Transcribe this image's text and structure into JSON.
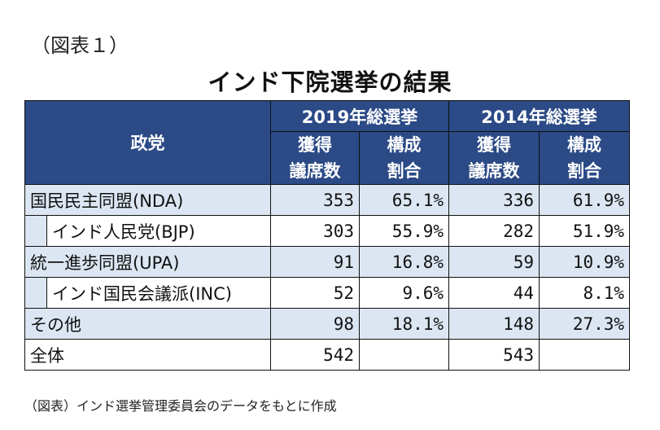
{
  "figure_label": "（図表１）",
  "title": "インド下院選挙の結果",
  "table": {
    "party_header": "政党",
    "election_2019": "2019年総選挙",
    "election_2014": "2014年総選挙",
    "seats_label_1": "獲得",
    "seats_label_2": "議席数",
    "share_label_1": "構成",
    "share_label_2": "割合",
    "rows": [
      {
        "name": "国民民主同盟(NDA)",
        "s2019": "353",
        "p2019": "65.1%",
        "s2014": "336",
        "p2014": "61.9%"
      },
      {
        "name": "インド人民党(BJP)",
        "s2019": "303",
        "p2019": "55.9%",
        "s2014": "282",
        "p2014": "51.9%"
      },
      {
        "name": "統一進歩同盟(UPA)",
        "s2019": "91",
        "p2019": "16.8%",
        "s2014": "59",
        "p2014": "10.9%"
      },
      {
        "name": "インド国民会議派(INC)",
        "s2019": "52",
        "p2019": "9.6%",
        "s2014": "44",
        "p2014": "8.1%"
      },
      {
        "name": "その他",
        "s2019": "98",
        "p2019": "18.1%",
        "s2014": "148",
        "p2014": "27.3%"
      },
      {
        "name": "全体",
        "s2019": "542",
        "p2019": "",
        "s2014": "543",
        "p2014": ""
      }
    ]
  },
  "footnote": "（図表）インド選挙管理委員会のデータをもとに作成",
  "colors": {
    "header_bg": "#2b4a86",
    "row_highlight": "#dce6f2"
  }
}
